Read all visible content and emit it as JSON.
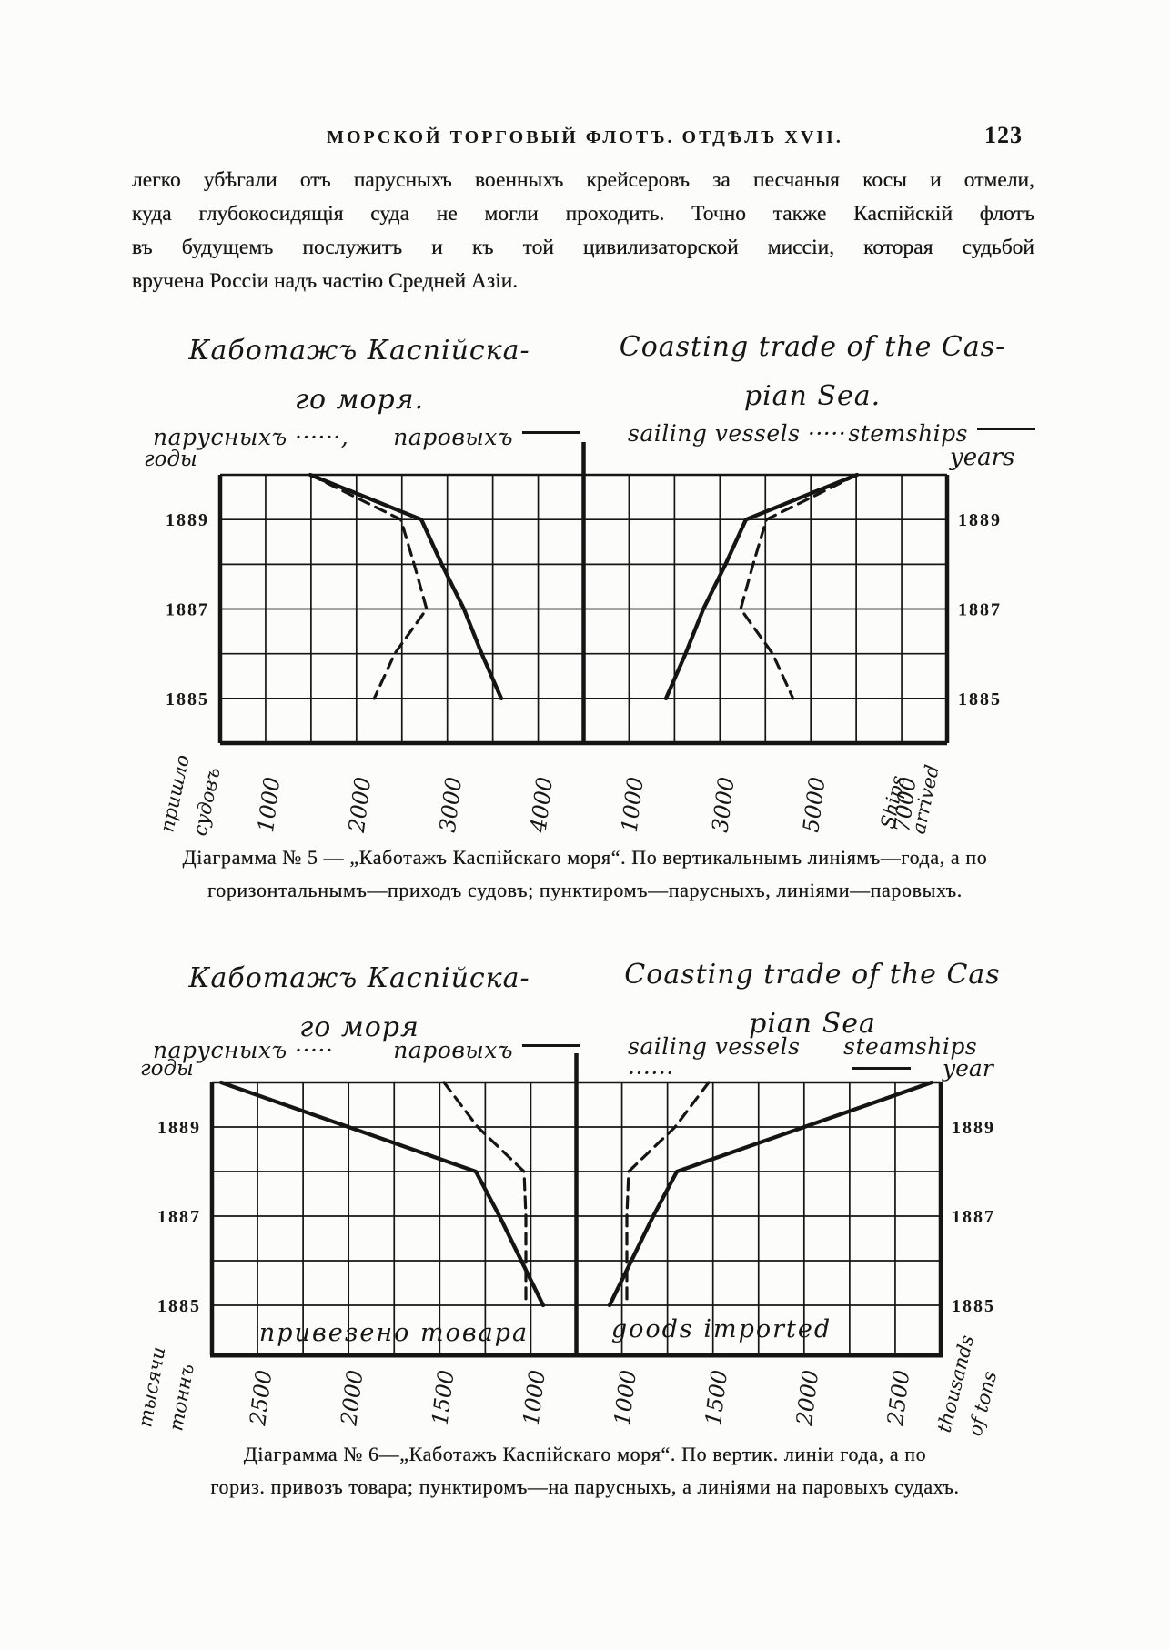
{
  "page": {
    "header": "МОРСКОЙ ТОРГОВЫЙ ФЛОТЪ. ОТДѢЛЪ XVII.",
    "page_number": "123",
    "paragraph_lines": [
      "легко убѣгали отъ парусныхъ военныхъ крейсеровъ за песчаныя косы и отмели,",
      "куда глубокосидящія суда не могли проходить. Точно также Каспійскій флотъ",
      "въ будущемъ послужитъ и къ той цивилизаторской миссіи, которая судьбой",
      "вручена Россіи надъ частію Средней Азіи."
    ]
  },
  "diagram5": {
    "title_ru_1": "Каботажъ Каспійска-",
    "title_ru_2": "го моря.",
    "title_en_1": "Coasting trade of the Cas-",
    "title_en_2": "pian Sea.",
    "legend": {
      "sail_ru": "парусныхъ ······,",
      "steam_ru": "паровыхъ",
      "sail_en": "sailing vessels ·····",
      "steam_en": "stemships"
    },
    "axis": {
      "years_left": "годы",
      "years_right": "years",
      "corner_left_1": "пришло",
      "corner_left_2": "судовъ",
      "corner_right_1": "Ships",
      "corner_right_2": "arrived"
    },
    "caption_1": "Діаграмма № 5 — „Каботажъ Каспійскаго моря“. По вертикальнымъ линіямъ—года, а по",
    "caption_2": "горизонтальнымъ—приходъ судовъ; пунктиромъ—парусныхъ, линіями—паровыхъ."
  },
  "diagram6": {
    "title_ru_1": "Каботажъ Каспійска-",
    "title_ru_2": "го моря",
    "title_en_1": "Coasting trade of the Cas",
    "title_en_2": "pian Sea",
    "legend": {
      "sail_ru": "парусныхъ ·····",
      "steam_ru": "паровыхъ",
      "sail_en": "sailing vessels ······",
      "steam_en": "steamships"
    },
    "axis": {
      "years_left": "годы",
      "years_right": "year",
      "corner_left_1": "тысячи",
      "corner_left_2": "тоннъ",
      "corner_right_1": "thousands",
      "corner_right_2": "of tons"
    },
    "band_ru": "привезено товара",
    "band_en": "goods imported",
    "caption_1": "Діаграмма № 6—„Каботажъ Каспійскаго моря“. По вертик. линіи года, а по",
    "caption_2": "гориз. привозъ товара; пунктиромъ—на парусныхъ, а линіями на паровыхъ судахъ."
  },
  "chart_data": [
    {
      "type": "line",
      "title": "Каботажъ Каспійскаго моря / Coasting trade of the Caspian Sea (Діаграмма № 5)",
      "description": "Mirrored double chart: years run down the vertical axis (top=1890, bottom=1884); horizontal axis = number of ships arrived (приходъ судовъ). Dashed = sailing vessels, solid = steamships. Left half labelled in Russian, right half mirror labelled in English.",
      "ylabel_left": "годы",
      "ylabel_right": "years",
      "xlabel_left": "пришло судовъ",
      "xlabel_right": "Ships arrived",
      "years": [
        1890,
        1889,
        1888,
        1887,
        1886,
        1885
      ],
      "year_tick_labels": [
        "1889",
        "1887",
        "1885"
      ],
      "x_ticks_left": [
        "1000",
        "2000",
        "3000",
        "4000"
      ],
      "x_ticks_right": [
        "1000",
        "3000",
        "5000",
        "7000"
      ],
      "grid": true,
      "legend_position": "top",
      "series": [
        {
          "name": "парусныхъ / sailing vessels",
          "style": "dashed",
          "values": [
            1440,
            2460,
            2610,
            2750,
            2390,
            2160
          ]
        },
        {
          "name": "паровыхъ / stemships",
          "style": "solid",
          "values": [
            1440,
            2690,
            2920,
            3170,
            3370,
            3590
          ]
        }
      ]
    },
    {
      "type": "line",
      "title": "Каботажъ Каспійскаго моря / Coasting trade of the Caspian Sea (Діаграмма № 6)",
      "description": "Mirrored double chart: years run down the vertical axis (top=1890, bottom=1884); horizontal axis = goods imported (привозъ товара) in thousands of tons, values increasing away from the centre. Dashed = sailing vessels, solid = steamships.",
      "ylabel_left": "годы",
      "ylabel_right": "year",
      "xlabel_left": "тысячи тоннъ",
      "xlabel_right": "thousands of tons",
      "band_label_left": "привезено товара",
      "band_label_right": "goods imported",
      "years": [
        1890,
        1889,
        1888,
        1887,
        1886,
        1885
      ],
      "year_tick_labels": [
        "1889",
        "1887",
        "1885"
      ],
      "x_ticks_left": [
        "2500",
        "2000",
        "1500",
        "1000"
      ],
      "x_ticks_right": [
        "1000",
        "1500",
        "2000",
        "2500"
      ],
      "grid": true,
      "legend_position": "top",
      "series": [
        {
          "name": "парусныхъ / sailing vessels",
          "style": "dashed",
          "values": [
            1475,
            1290,
            1035,
            1025,
            1025,
            1025
          ]
        },
        {
          "name": "паровыхъ / steamships",
          "style": "solid",
          "values": [
            2700,
            2000,
            1300,
            1170,
            1050,
            930
          ]
        }
      ]
    }
  ]
}
